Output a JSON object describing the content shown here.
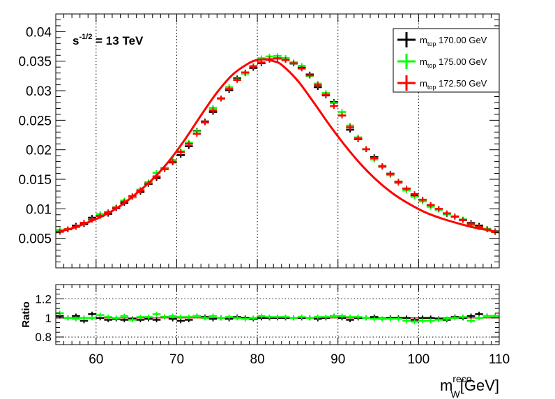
{
  "chart_data": [
    {
      "type": "line",
      "panel": "main",
      "energy_label": {
        "main": "s",
        "sup": "-1/2",
        "rest": " = 13 TeV"
      },
      "xlim": [
        55,
        110
      ],
      "ylim": [
        0,
        0.043
      ],
      "x_ticks": [
        60,
        70,
        80,
        90,
        100,
        110
      ],
      "y_ticks": [
        "0.005",
        "0.01",
        "0.015",
        "0.02",
        "0.025",
        "0.03",
        "0.035",
        "0.04"
      ],
      "grid": "vertical dotted",
      "legend_placement": "top-right",
      "bin_edges": [
        55,
        110
      ],
      "bin_count": 55,
      "series": [
        {
          "name": {
            "main": "m",
            "sub": "top",
            "rest": " 170.00 GeV"
          },
          "color": "#000000",
          "values": [
            0.00615,
            0.00652,
            0.00715,
            0.0074,
            0.0085,
            0.0088,
            0.00915,
            0.0101,
            0.011,
            0.01195,
            0.01285,
            0.0142,
            0.0152,
            0.0169,
            0.01785,
            0.0191,
            0.0206,
            0.0232,
            0.0248,
            0.0264,
            0.0287,
            0.0301,
            0.0321,
            0.03295,
            0.03385,
            0.03465,
            0.03525,
            0.03545,
            0.0352,
            0.0346,
            0.0339,
            0.03275,
            0.0306,
            0.0292,
            0.0281,
            0.0258,
            0.0234,
            0.0218,
            0.0201,
            0.01875,
            0.01715,
            0.01595,
            0.0146,
            0.0134,
            0.01225,
            0.0115,
            0.0106,
            0.00995,
            0.0091,
            0.0087,
            0.0081,
            0.0076,
            0.00715,
            0.0066,
            0.0062
          ]
        },
        {
          "name": {
            "main": "m",
            "sub": "top",
            "rest": " 175.00 GeV"
          },
          "color": "#00ff00",
          "values": [
            0.0064,
            0.00655,
            0.0069,
            0.00765,
            0.00815,
            0.0091,
            0.00945,
            0.01025,
            0.0114,
            0.01195,
            0.01325,
            0.0145,
            0.0161,
            0.01685,
            0.01825,
            0.01975,
            0.0212,
            0.0231,
            0.0246,
            0.0271,
            0.0286,
            0.0306,
            0.0319,
            0.0329,
            0.0342,
            0.0355,
            0.0358,
            0.0359,
            0.03555,
            0.0348,
            0.0342,
            0.0325,
            0.0312,
            0.0296,
            0.0279,
            0.0264,
            0.0241,
            0.0221,
            0.0201,
            0.01835,
            0.01705,
            0.0157,
            0.01435,
            0.0131,
            0.01205,
            0.01125,
            0.01035,
            0.00985,
            0.00915,
            0.00865,
            0.0082,
            0.0072,
            0.0069,
            0.0066,
            0.00615
          ]
        },
        {
          "name": {
            "main": "m",
            "sub": "top",
            "rest": " 172.50 GeV"
          },
          "color": "#ff0000",
          "values": [
            0.0061,
            0.00655,
            0.00695,
            0.00765,
            0.00815,
            0.0088,
            0.0094,
            0.0102,
            0.0112,
            0.01215,
            0.0131,
            0.0143,
            0.0155,
            0.0167,
            0.01795,
            0.0196,
            0.021,
            0.0227,
            0.02465,
            0.0267,
            0.0287,
            0.0303,
            0.0318,
            0.0331,
            0.0341,
            0.0348,
            0.03535,
            0.0355,
            0.0352,
            0.03465,
            0.03375,
            0.0326,
            0.03095,
            0.0293,
            0.0274,
            0.0258,
            0.0238,
            0.0219,
            0.0201,
            0.0186,
            0.01725,
            0.0159,
            0.01455,
            0.01345,
            0.0125,
            0.01155,
            0.01065,
            0.01,
            0.00925,
            0.00865,
            0.0081,
            0.00745,
            0.0069,
            0.0065,
            0.00605
          ]
        }
      ],
      "fit_curve": {
        "name": {
          "main": "m",
          "sub": "top",
          "rest": " 172.50 GeV"
        },
        "color": "#ff0000",
        "x": [
          55,
          57,
          59,
          61,
          63,
          65,
          67,
          69,
          71,
          73,
          75,
          77,
          79,
          80,
          81,
          82,
          83,
          85,
          87,
          89,
          91,
          93,
          95,
          97,
          99,
          101,
          103,
          105,
          107,
          109,
          110
        ],
        "y": [
          0.006,
          0.0067,
          0.0077,
          0.0089,
          0.0105,
          0.0126,
          0.015,
          0.018,
          0.0217,
          0.0258,
          0.0297,
          0.0328,
          0.0347,
          0.0352,
          0.0353,
          0.035,
          0.0344,
          0.0317,
          0.028,
          0.0241,
          0.0205,
          0.0173,
          0.0146,
          0.0124,
          0.0107,
          0.0093,
          0.0083,
          0.0075,
          0.0068,
          0.0063,
          0.006
        ]
      },
      "xlabel": {
        "main": "m",
        "sup": "reco",
        "sub": "W",
        "rest": "[GeV]"
      }
    },
    {
      "type": "line",
      "panel": "ratio",
      "ylabel": "Ratio",
      "xlim": [
        55,
        110
      ],
      "ylim": [
        0.72,
        1.35
      ],
      "y_ticks": [
        "0.8",
        "1",
        "1.2"
      ],
      "grid": "vertical and horizontal dotted",
      "reference_line": {
        "value": 1.0,
        "color": "#ff0000"
      },
      "series": [
        {
          "name": {
            "main": "m",
            "sub": "top",
            "rest": " 170.00 GeV"
          },
          "color": "#000000",
          "values": [
            1.02,
            1.0,
            1.02,
            0.97,
            1.04,
            1.0,
            0.98,
            0.99,
            0.98,
            0.99,
            0.98,
            0.99,
            0.98,
            1.01,
            0.99,
            0.97,
            0.98,
            1.02,
            1.01,
            0.99,
            1.0,
            0.99,
            1.01,
            1.0,
            0.99,
            1.0,
            1.0,
            1.0,
            1.0,
            1.0,
            1.0,
            1.0,
            0.99,
            1.0,
            1.02,
            1.0,
            0.98,
            1.0,
            1.0,
            1.01,
            0.99,
            1.0,
            1.0,
            1.0,
            0.98,
            1.0,
            1.0,
            0.99,
            0.98,
            1.01,
            1.0,
            1.02,
            1.04,
            1.02,
            1.02
          ]
        },
        {
          "name": {
            "main": "m",
            "sub": "top",
            "rest": " 175.00 GeV"
          },
          "color": "#00ff00",
          "values": [
            1.05,
            1.0,
            0.99,
            1.0,
            1.0,
            1.03,
            1.01,
            1.0,
            1.02,
            0.98,
            1.01,
            1.01,
            1.04,
            1.01,
            1.02,
            1.01,
            1.01,
            1.02,
            1.0,
            1.02,
            1.0,
            1.01,
            1.0,
            0.99,
            1.0,
            1.02,
            1.01,
            1.01,
            1.01,
            1.0,
            1.01,
            1.0,
            1.01,
            1.01,
            1.02,
            1.02,
            1.01,
            1.01,
            1.0,
            0.99,
            0.99,
            0.99,
            0.99,
            0.97,
            0.96,
            0.97,
            0.97,
            0.98,
            0.99,
            1.0,
            1.01,
            0.97,
            1.0,
            1.02,
            1.02
          ]
        }
      ]
    }
  ]
}
